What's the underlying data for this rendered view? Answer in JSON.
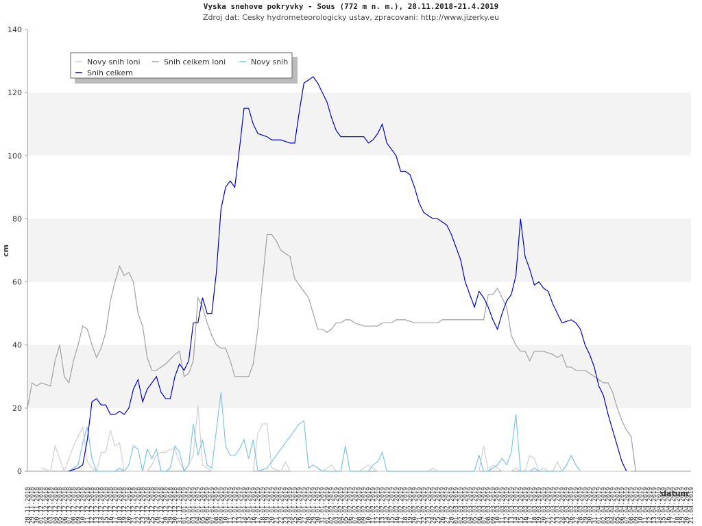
{
  "chart_data": {
    "type": "line",
    "title": "Vyska snehove pokryvky - Sous (772 m n. m.), 28.11.2018-21.4.2019",
    "subtitle": "Zdroj dat: Cesky hydrometeorologicky ustav, zpracovani: http://www.jizerky.eu",
    "y_label": "cm",
    "x_label": "datum",
    "ylim": [
      0,
      140
    ],
    "yticks": [
      0,
      20,
      40,
      60,
      80,
      100,
      120,
      140
    ],
    "grid": "bands",
    "categories": [
      "28.11.2018",
      "29.11.2018",
      "30.11.2018",
      "01.12.2018",
      "02.12.2018",
      "03.12.2018",
      "04.12.2018",
      "05.12.2018",
      "06.12.2018",
      "07.12.2018",
      "08.12.2018",
      "09.12.2018",
      "10.12.2018",
      "11.12.2018",
      "12.12.2018",
      "13.12.2018",
      "14.12.2018",
      "15.12.2018",
      "16.12.2018",
      "17.12.2018",
      "18.12.2018",
      "19.12.2018",
      "20.12.2018",
      "21.12.2018",
      "22.12.2018",
      "23.12.2018",
      "24.12.2018",
      "25.12.2018",
      "26.12.2018",
      "27.12.2018",
      "28.12.2018",
      "29.12.2018",
      "30.12.2018",
      "31.12.2018",
      "01.01.2019",
      "02.01.2019",
      "03.01.2019",
      "04.01.2019",
      "05.01.2019",
      "06.01.2019",
      "07.01.2019",
      "08.01.2019",
      "09.01.2019",
      "10.01.2019",
      "11.01.2019",
      "12.01.2019",
      "13.01.2019",
      "14.01.2019",
      "15.01.2019",
      "16.01.2019",
      "17.01.2019",
      "18.01.2019",
      "19.01.2019",
      "20.01.2019",
      "21.01.2019",
      "22.01.2019",
      "23.01.2019",
      "24.01.2019",
      "25.01.2019",
      "26.01.2019",
      "27.01.2019",
      "28.01.2019",
      "29.01.2019",
      "30.01.2019",
      "31.01.2019",
      "01.02.2019",
      "02.02.2019",
      "03.02.2019",
      "04.02.2019",
      "05.02.2019",
      "06.02.2019",
      "07.02.2019",
      "08.02.2019",
      "09.02.2019",
      "10.02.2019",
      "11.02.2019",
      "12.02.2019",
      "13.02.2019",
      "14.02.2019",
      "15.02.2019",
      "16.02.2019",
      "17.02.2019",
      "18.02.2019",
      "19.02.2019",
      "20.02.2019",
      "21.02.2019",
      "22.02.2019",
      "23.02.2019",
      "24.02.2019",
      "25.02.2019",
      "26.02.2019",
      "27.02.2019",
      "28.02.2019",
      "01.03.2019",
      "02.03.2019",
      "03.03.2019",
      "04.03.2019",
      "05.03.2019",
      "06.03.2019",
      "07.03.2019",
      "08.03.2019",
      "09.03.2019",
      "10.03.2019",
      "11.03.2019",
      "12.03.2019",
      "13.03.2019",
      "14.03.2019",
      "15.03.2019",
      "16.03.2019",
      "17.03.2019",
      "18.03.2019",
      "19.03.2019",
      "20.03.2019",
      "21.03.2019",
      "22.03.2019",
      "23.03.2019",
      "24.03.2019",
      "25.03.2019",
      "26.03.2019",
      "27.03.2019",
      "28.03.2019",
      "29.03.2019",
      "30.03.2019",
      "31.03.2019",
      "01.04.2019",
      "02.04.2019",
      "03.04.2019",
      "04.04.2019",
      "05.04.2019",
      "06.04.2019",
      "07.04.2019",
      "08.04.2019",
      "09.04.2019",
      "10.04.2019",
      "11.04.2019",
      "12.04.2019",
      "13.04.2019",
      "14.04.2019",
      "15.04.2019",
      "16.04.2019",
      "17.04.2019",
      "18.04.2019",
      "19.04.2019",
      "20.04.2019",
      "21.04.2019"
    ],
    "series": [
      {
        "name": "Novy snih loni",
        "color": "#d0d0d0",
        "values": [
          null,
          null,
          null,
          1,
          0.5,
          0,
          8,
          4,
          0,
          4,
          8,
          11,
          14,
          3,
          1,
          0,
          6,
          6,
          13,
          8,
          9,
          0,
          0,
          0,
          0,
          0,
          0,
          2,
          5,
          6,
          6,
          7,
          7,
          3,
          0,
          2,
          5,
          21,
          2,
          1,
          0,
          0,
          0,
          0,
          0,
          0,
          0,
          0,
          0,
          0,
          12,
          15,
          15,
          1,
          0.5,
          0,
          3,
          0,
          0,
          0,
          0,
          0,
          0,
          0,
          0,
          1,
          2,
          0,
          0,
          0,
          0,
          0,
          0,
          1,
          2,
          1,
          0,
          0,
          0,
          0,
          0,
          0,
          0,
          0,
          0,
          0,
          0,
          0,
          1,
          0,
          0,
          0,
          0,
          0,
          0,
          0,
          0,
          0,
          0,
          8,
          0,
          2,
          1,
          0,
          0,
          0,
          1,
          0,
          0,
          5,
          4,
          0,
          1,
          0,
          0,
          3,
          0,
          0,
          0,
          0,
          0,
          0,
          0,
          0,
          0,
          0,
          0,
          0,
          0,
          0,
          0,
          0,
          null,
          null,
          null,
          null,
          null,
          null,
          null,
          null,
          null,
          null,
          null,
          null,
          null
        ]
      },
      {
        "name": "Snih celkem loni",
        "color": "#a0a0a0",
        "values": [
          20,
          28,
          27,
          28,
          27.5,
          27,
          35,
          40,
          30,
          28,
          35,
          40,
          46,
          45,
          40,
          36,
          39,
          44,
          54,
          60,
          65,
          62,
          63,
          60,
          50,
          46,
          36,
          32,
          32,
          33,
          34,
          35.5,
          37,
          38,
          30,
          31,
          35,
          55,
          52,
          47,
          43,
          40,
          39,
          39,
          35,
          30,
          30,
          30,
          30,
          34,
          45,
          60,
          75,
          75,
          73,
          70,
          69,
          68,
          61,
          59,
          57,
          55,
          50,
          45,
          45,
          44,
          45,
          47,
          47,
          48,
          48,
          47,
          46.5,
          46,
          46,
          46,
          46,
          47,
          47,
          47,
          48,
          48,
          48,
          47.5,
          47,
          47,
          47,
          47,
          47,
          47,
          48,
          48,
          48,
          48,
          48,
          48,
          48,
          48,
          48,
          48,
          56,
          56,
          58,
          55,
          52,
          43,
          40,
          38,
          38,
          35,
          38,
          38,
          38,
          37.5,
          37,
          36,
          37,
          33,
          33,
          32,
          32,
          32,
          31,
          30,
          29,
          28,
          28,
          25,
          20,
          16,
          13,
          11,
          0,
          null,
          null,
          null,
          null,
          null,
          null,
          null,
          null,
          null,
          null,
          null,
          null
        ]
      },
      {
        "name": "Novy snih",
        "color": "#7ec4e6",
        "values": [
          null,
          null,
          null,
          null,
          null,
          null,
          null,
          null,
          null,
          0,
          1,
          2,
          9,
          14,
          4,
          0,
          0,
          0,
          0,
          0,
          1,
          0,
          2,
          8,
          7,
          0,
          7,
          4,
          7,
          0,
          0,
          1,
          8,
          6,
          0,
          2,
          15,
          5,
          10,
          2,
          1,
          13,
          25,
          8,
          5,
          5,
          7,
          10,
          4,
          10,
          0,
          0.5,
          1,
          3,
          5,
          7,
          9,
          11,
          13,
          15,
          16,
          1,
          2,
          1,
          0,
          0,
          0,
          0,
          0,
          8,
          0,
          0,
          0,
          0,
          0,
          2,
          3,
          6,
          0,
          0,
          0,
          0,
          0,
          0,
          0,
          0,
          0,
          0,
          0,
          0,
          0,
          0,
          0,
          0,
          0,
          0,
          0,
          0,
          5,
          0,
          0,
          1,
          2,
          4,
          2,
          6,
          18,
          0,
          0,
          0,
          1,
          0,
          0,
          0,
          0,
          0,
          0,
          2,
          5,
          2,
          0,
          null,
          null,
          null,
          null,
          null,
          null,
          null,
          null,
          null,
          null,
          null,
          null,
          null,
          null,
          null,
          null,
          null,
          null,
          null,
          null,
          null,
          null,
          null,
          null
        ]
      },
      {
        "name": "Snih celkem",
        "color": "#0000cc",
        "values": [
          null,
          null,
          null,
          null,
          null,
          null,
          null,
          null,
          null,
          0,
          0.5,
          1,
          2,
          10,
          22,
          23,
          21,
          21,
          18,
          18,
          19,
          18,
          20,
          26,
          29,
          22,
          26,
          28,
          30,
          25,
          23,
          23,
          30,
          34,
          32,
          35,
          47,
          47,
          55,
          50,
          50,
          63,
          83,
          90,
          92,
          90,
          102,
          115,
          115,
          110,
          107,
          106.5,
          106,
          105,
          105,
          105,
          104.5,
          104,
          104,
          114,
          123,
          124,
          125,
          123,
          120,
          117,
          112,
          108,
          106,
          106,
          106,
          106,
          106,
          106,
          104,
          105,
          107,
          110,
          104,
          102,
          100,
          95,
          95,
          94,
          90,
          85,
          82,
          81,
          80,
          80,
          79,
          78,
          75,
          71,
          67,
          60,
          56,
          52,
          57,
          55,
          52,
          48,
          45,
          50,
          54,
          56,
          62,
          80,
          68,
          64,
          59,
          60,
          58,
          57,
          53,
          50,
          47,
          47.5,
          48,
          47,
          45,
          40,
          37,
          33,
          27,
          24,
          18,
          13,
          8,
          3,
          0,
          null,
          null,
          null,
          null,
          null,
          null,
          null,
          null,
          null,
          null,
          null,
          null,
          null,
          null
        ]
      }
    ]
  }
}
